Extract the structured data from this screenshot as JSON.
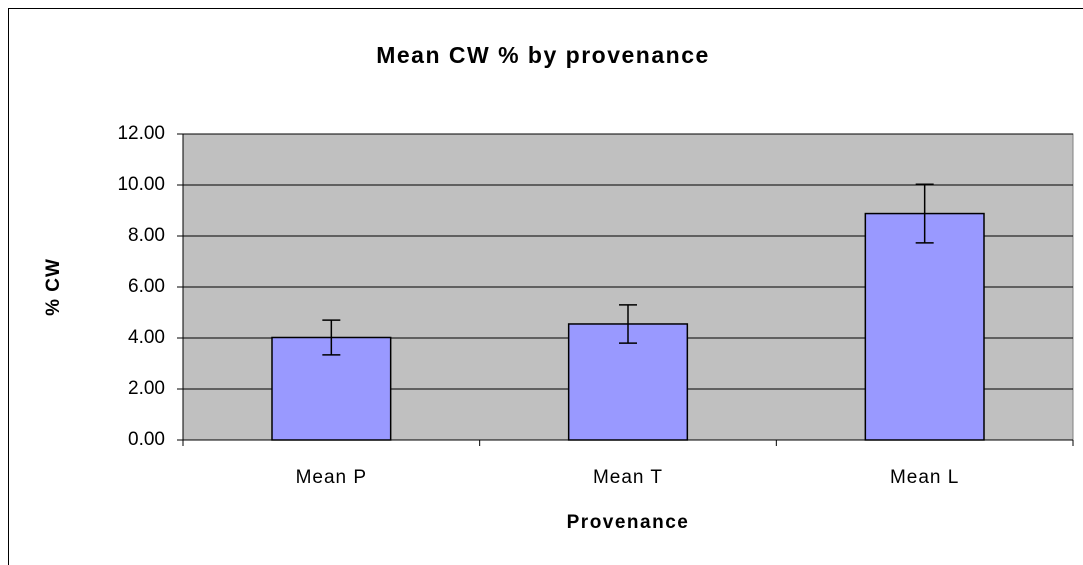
{
  "chart_data": {
    "type": "bar",
    "title": "Mean CW % by provenance",
    "x_label": "Provenance",
    "y_label": "% CW",
    "categories": [
      "Mean P",
      "Mean T",
      "Mean L"
    ],
    "values": [
      4.02,
      4.55,
      8.88
    ],
    "errors": [
      0.68,
      0.75,
      1.15
    ],
    "color": "#9999ff",
    "ylim": [
      0,
      12
    ],
    "yticks": [
      {
        "value": 0,
        "label": "0.00"
      },
      {
        "value": 2,
        "label": "2.00"
      },
      {
        "value": 4,
        "label": "4.00"
      },
      {
        "value": 6,
        "label": "6.00"
      },
      {
        "value": 8,
        "label": "8.00"
      },
      {
        "value": 10,
        "label": "10.00"
      },
      {
        "value": 12,
        "label": "12.00"
      }
    ],
    "grid": true
  }
}
